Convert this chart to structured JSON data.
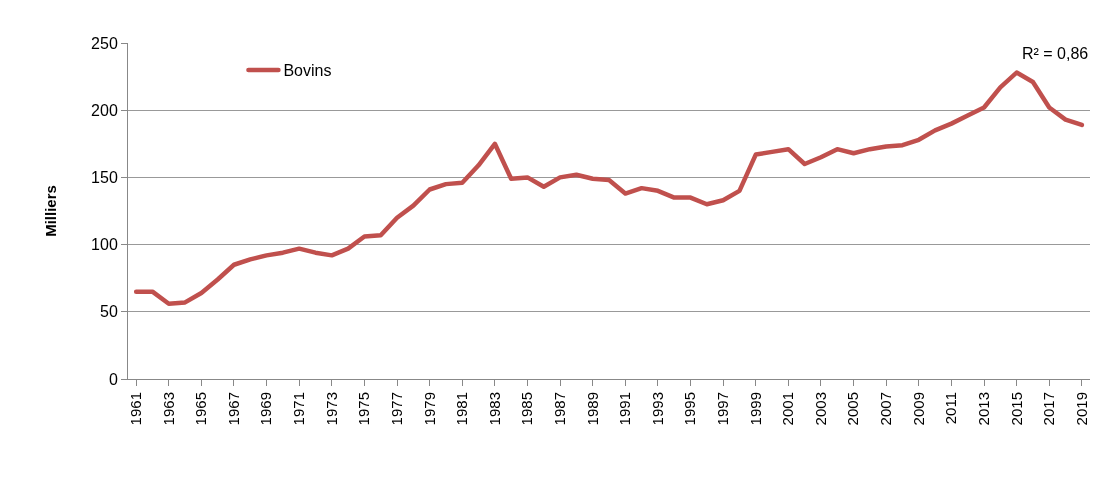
{
  "chart_data": {
    "type": "line",
    "ylabel": "Milliers",
    "categories": [
      "1961",
      null,
      "1963",
      null,
      "1965",
      null,
      "1967",
      null,
      "1969",
      null,
      "1971",
      null,
      "1973",
      null,
      "1975",
      null,
      "1977",
      null,
      "1979",
      null,
      "1981",
      null,
      "1983",
      null,
      "1985",
      null,
      "1987",
      null,
      "1989",
      null,
      "1991",
      null,
      "1993",
      null,
      "1995",
      null,
      "1997",
      null,
      "1999",
      null,
      "2001",
      null,
      "2003",
      null,
      "2005",
      null,
      "2007",
      null,
      "2009",
      null,
      "2011",
      null,
      "2013",
      null,
      "2015",
      null,
      "2017",
      null,
      "2019"
    ],
    "series": [
      {
        "name": "Bovins",
        "color": "#c0504d",
        "values": [
          65,
          65,
          56,
          57,
          64,
          74,
          85,
          89,
          92,
          94,
          97,
          94,
          92,
          97,
          106,
          107,
          120,
          129,
          141,
          145,
          146,
          159,
          175,
          149,
          150,
          143,
          150,
          152,
          149,
          148,
          138,
          142,
          140,
          135,
          135,
          130,
          133,
          140,
          167,
          169,
          171,
          160,
          165,
          171,
          168,
          171,
          173,
          174,
          178,
          185,
          190,
          196,
          202,
          217,
          228,
          221,
          202,
          193,
          189
        ]
      }
    ],
    "annotations": [
      "R² = 0,86"
    ],
    "ylim": [
      0,
      250
    ],
    "yticks": [
      0,
      50,
      100,
      150,
      200,
      250
    ],
    "grid": "y",
    "legend": "top left",
    "marker": "none",
    "line_style": "solid"
  }
}
